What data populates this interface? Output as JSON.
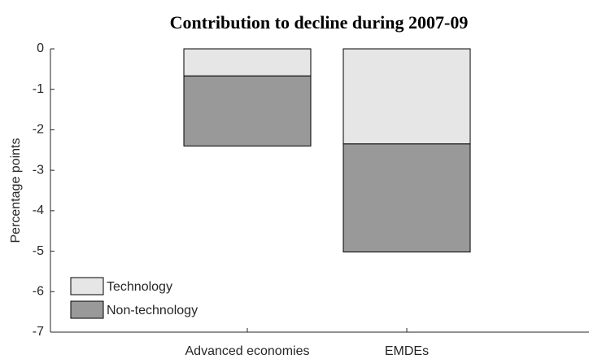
{
  "chart_data": {
    "type": "stacked_bar",
    "title": "Contribution to decline during 2007-09",
    "y_label": "Percentage points",
    "categories": [
      "Advanced economies",
      "EMDEs"
    ],
    "series": [
      {
        "name": "Technology",
        "color": "#e6e6e6",
        "values": [
          -0.67,
          -2.35
        ]
      },
      {
        "name": "Non-technology",
        "color": "#999999",
        "values": [
          -1.73,
          -2.67
        ]
      }
    ],
    "ylim": [
      -7,
      0
    ],
    "yticks": [
      -7,
      -6,
      -5,
      -4,
      -3,
      -2,
      -1,
      0
    ],
    "legend": "lower-left"
  }
}
